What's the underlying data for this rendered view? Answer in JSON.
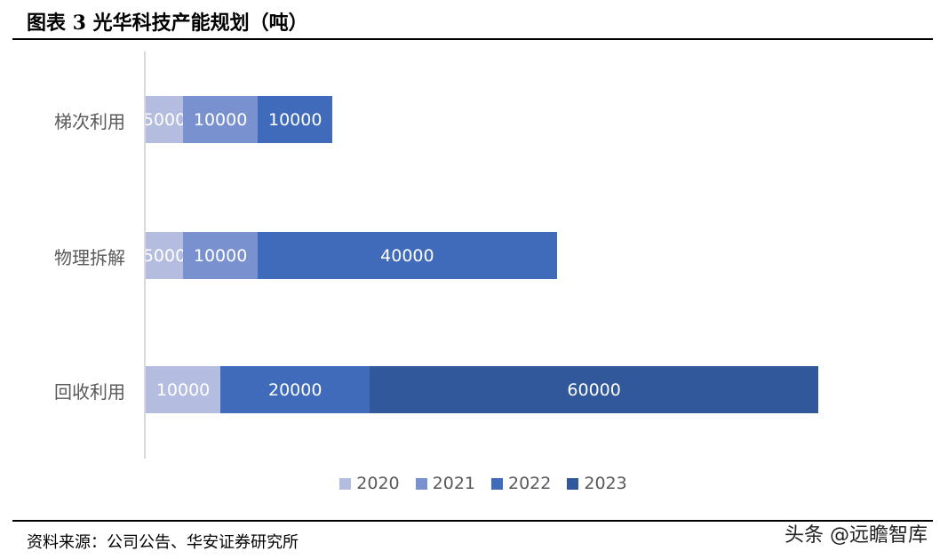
{
  "header": {
    "title": "图表 3  光华科技产能规划（吨）"
  },
  "chart_data": {
    "type": "bar",
    "orientation": "horizontal",
    "stacked": true,
    "title": "光华科技产能规划（吨）",
    "categories": [
      "梯次利用",
      "物理拆解",
      "回收利用"
    ],
    "series": [
      {
        "name": "2020",
        "color": "#b4bde0",
        "values": [
          5000,
          5000,
          10000
        ]
      },
      {
        "name": "2021",
        "color": "#7a91cf",
        "values": [
          10000,
          10000,
          0
        ]
      },
      {
        "name": "2022",
        "color": "#3f6bba",
        "values": [
          10000,
          40000,
          20000
        ]
      },
      {
        "name": "2023",
        "color": "#31589a",
        "values": [
          0,
          0,
          60000
        ]
      }
    ],
    "xlim": [
      0,
      90000
    ],
    "legend": "bottom",
    "grid": false
  },
  "footer": {
    "source": "资料来源：公司公告、华安证券研究所",
    "watermark": "头条 @远瞻智库"
  }
}
